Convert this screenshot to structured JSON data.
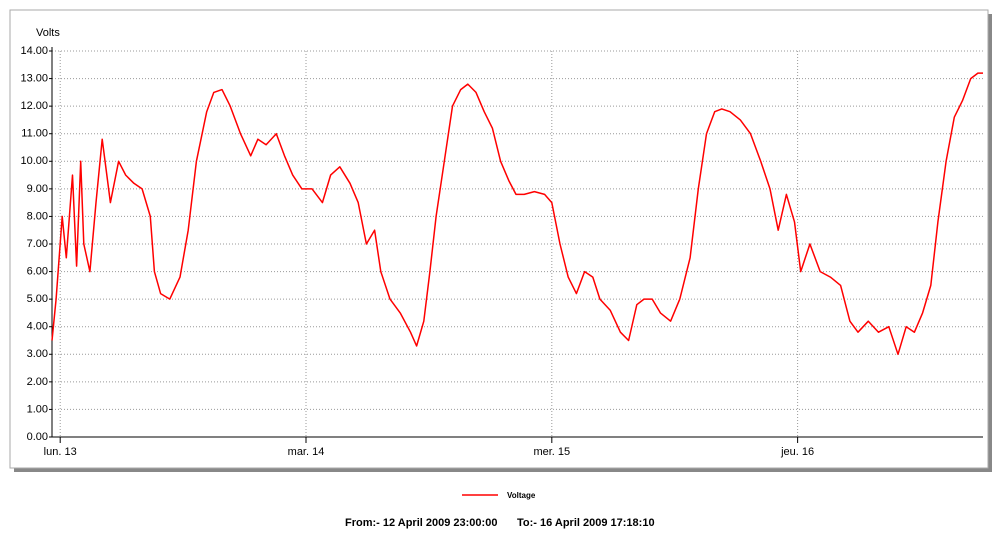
{
  "chart_data": {
    "type": "line",
    "y_label": "Volts",
    "x": [
      -0.8,
      -0.4,
      0.2,
      0.6,
      1.2,
      1.6,
      2.0,
      2.3,
      2.9,
      3.5,
      4.1,
      4.9,
      5.7,
      6.4,
      7.2,
      8.0,
      8.8,
      9.2,
      9.8,
      10.7,
      11.7,
      12.5,
      13.3,
      14.3,
      15.0,
      15.8,
      16.6,
      17.6,
      18.6,
      19.3,
      20.1,
      21.1,
      21.9,
      22.7,
      23.6,
      24.6,
      25.6,
      26.4,
      27.3,
      28.3,
      29.1,
      29.9,
      30.7,
      31.3,
      32.2,
      33.2,
      34.2,
      34.8,
      35.5,
      36.1,
      36.7,
      37.5,
      38.3,
      39.1,
      39.8,
      40.6,
      41.4,
      42.2,
      43.0,
      43.8,
      44.5,
      45.3,
      46.3,
      47.3,
      48.0,
      48.8,
      49.6,
      50.4,
      51.2,
      52.0,
      52.7,
      53.7,
      54.7,
      55.5,
      56.3,
      57.0,
      57.8,
      58.6,
      59.6,
      60.5,
      61.5,
      62.3,
      63.1,
      63.9,
      64.6,
      65.4,
      66.4,
      67.4,
      68.4,
      69.3,
      70.1,
      70.9,
      71.7,
      72.3,
      73.2,
      74.2,
      75.2,
      76.2,
      77.1,
      77.9,
      78.9,
      79.9,
      80.9,
      81.8,
      82.6,
      83.4,
      84.2,
      85.0,
      85.7,
      86.5,
      87.3,
      88.1,
      88.9,
      89.6,
      90.1
    ],
    "series": [
      {
        "name": "Voltage",
        "color": "#ff0000",
        "values": [
          3.5,
          5.0,
          8.0,
          6.5,
          9.5,
          6.2,
          10.0,
          7.0,
          6.0,
          8.5,
          10.8,
          8.5,
          10.0,
          9.5,
          9.2,
          9.0,
          8.0,
          6.0,
          5.2,
          5.0,
          5.8,
          7.5,
          10.0,
          11.8,
          12.5,
          12.6,
          12.0,
          11.0,
          10.2,
          10.8,
          10.6,
          11.0,
          10.2,
          9.5,
          9.0,
          9.0,
          8.5,
          9.5,
          9.8,
          9.2,
          8.5,
          7.0,
          7.5,
          6.0,
          5.0,
          4.5,
          3.8,
          3.3,
          4.2,
          6.0,
          8.0,
          10.0,
          12.0,
          12.6,
          12.8,
          12.5,
          11.8,
          11.2,
          10.0,
          9.3,
          8.8,
          8.8,
          8.9,
          8.8,
          8.5,
          7.0,
          5.8,
          5.2,
          6.0,
          5.8,
          5.0,
          4.6,
          3.8,
          3.5,
          4.8,
          5.0,
          5.0,
          4.5,
          4.2,
          5.0,
          6.5,
          9.0,
          11.0,
          11.8,
          11.9,
          11.8,
          11.5,
          11.0,
          10.0,
          9.0,
          7.5,
          8.8,
          7.8,
          6.0,
          7.0,
          6.0,
          5.8,
          5.5,
          4.2,
          3.8,
          4.2,
          3.8,
          4.0,
          3.0,
          4.0,
          3.8,
          4.5,
          5.5,
          7.8,
          10.0,
          11.6,
          12.2,
          13.0,
          13.2,
          13.2
        ]
      }
    ],
    "xlim": [
      -0.8,
      90.1
    ],
    "xticks": [
      {
        "value": 0,
        "label": "lun. 13"
      },
      {
        "value": 24,
        "label": "mar. 14"
      },
      {
        "value": 48,
        "label": "mer. 15"
      },
      {
        "value": 72,
        "label": "jeu. 16"
      }
    ],
    "ylim": [
      0,
      14
    ],
    "yticks": [
      {
        "value": 0,
        "label": "0.00"
      },
      {
        "value": 1,
        "label": "1.00"
      },
      {
        "value": 2,
        "label": "2.00"
      },
      {
        "value": 3,
        "label": "3.00"
      },
      {
        "value": 4,
        "label": "4.00"
      },
      {
        "value": 5,
        "label": "5.00"
      },
      {
        "value": 6,
        "label": "6.00"
      },
      {
        "value": 7,
        "label": "7.00"
      },
      {
        "value": 8,
        "label": "8.00"
      },
      {
        "value": 9,
        "label": "9.00"
      },
      {
        "value": 10,
        "label": "10.00"
      },
      {
        "value": 11,
        "label": "11.00"
      },
      {
        "value": 12,
        "label": "12.00"
      },
      {
        "value": 13,
        "label": "13.00"
      },
      {
        "value": 14,
        "label": "14.00"
      }
    ],
    "grid": true,
    "legend": "bottom",
    "footer": {
      "from": "From:-  12 April 2009 23:00:00",
      "to": "To:-  16 April 2009 17:18:10"
    }
  }
}
